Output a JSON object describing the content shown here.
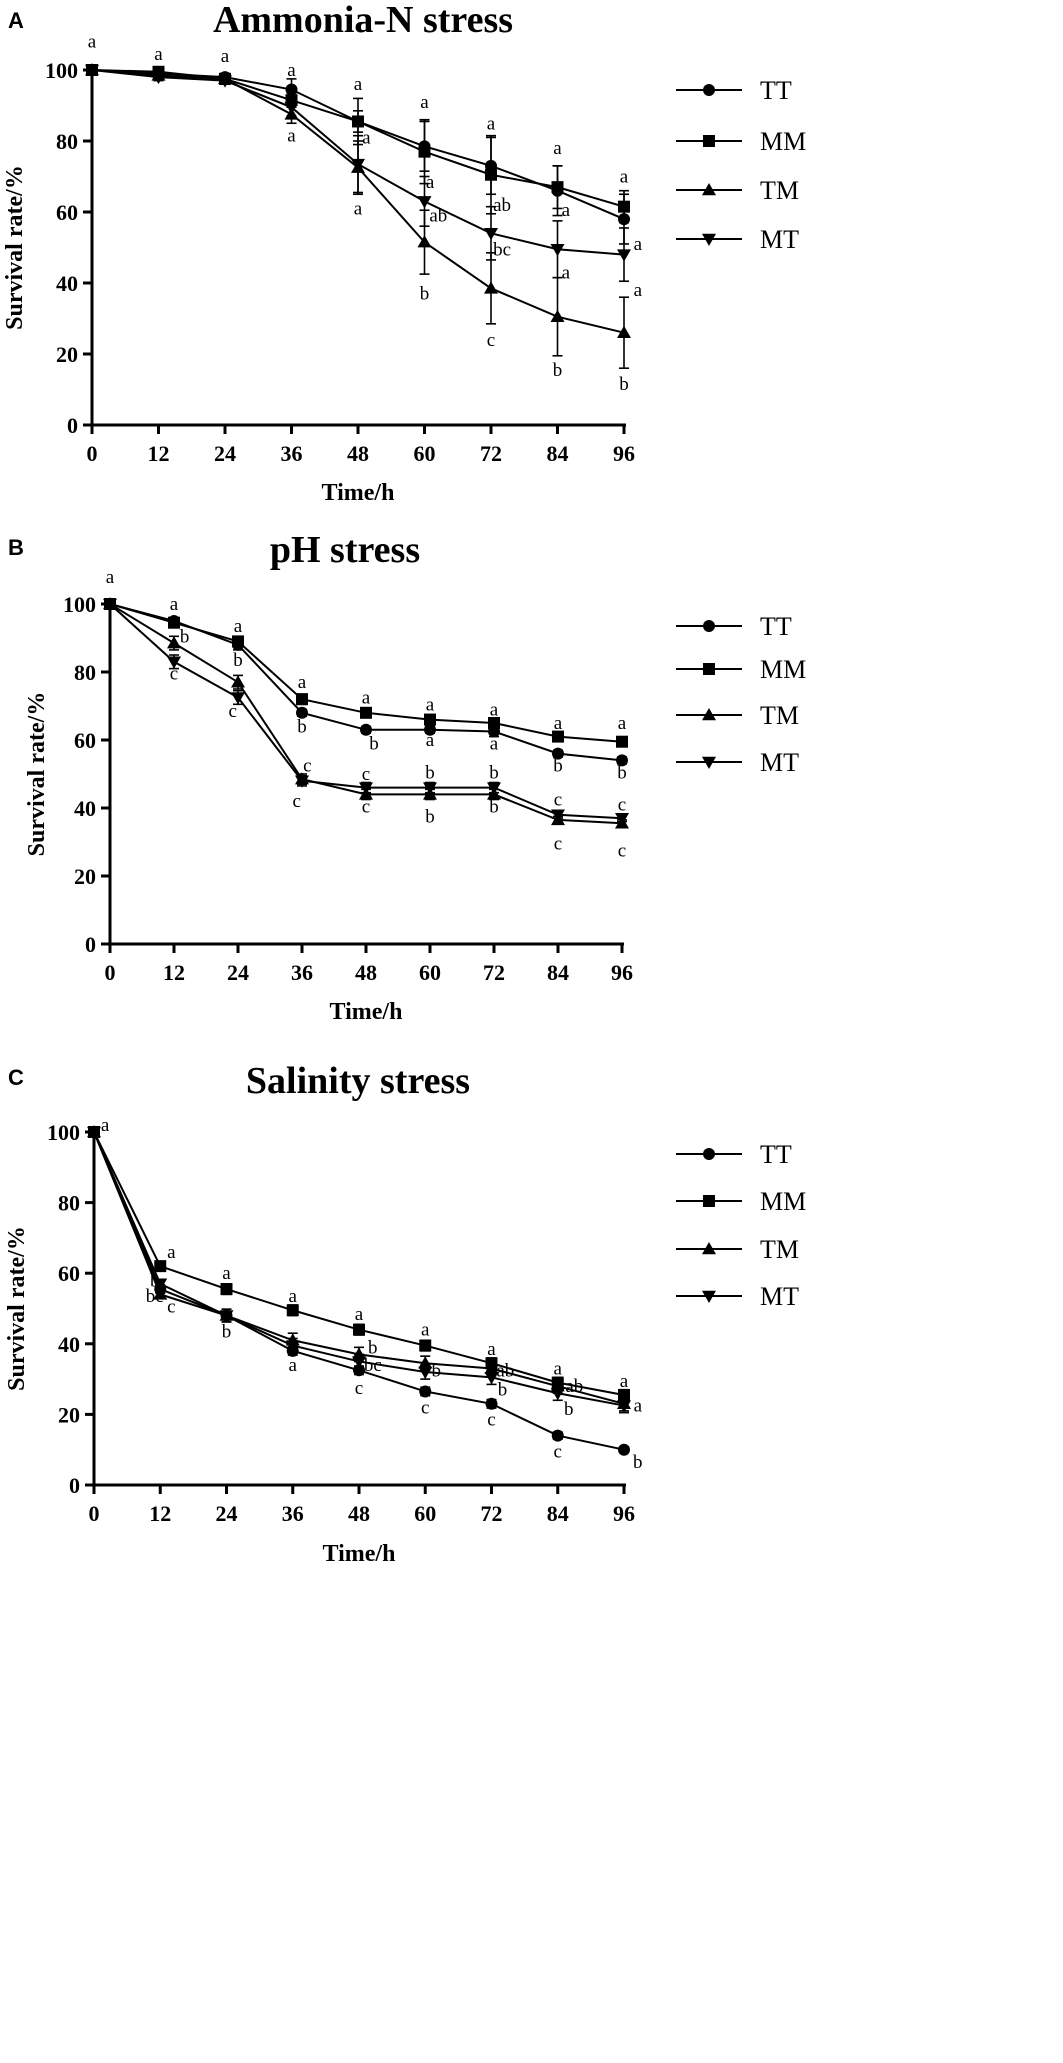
{
  "chart_data": [
    {
      "panel": "A",
      "type": "line",
      "title": "Ammonia-N stress",
      "xlabel": "Time/h",
      "ylabel": "Survival rate/%",
      "x": [
        0,
        12,
        24,
        36,
        48,
        60,
        72,
        84,
        96
      ],
      "x_ticks": [
        "0",
        "12",
        "24",
        "36",
        "48",
        "60",
        "72",
        "84",
        "96"
      ],
      "ylim": [
        0,
        100
      ],
      "y_ticks": [
        "0",
        "20",
        "40",
        "60",
        "80",
        "100"
      ],
      "legend": [
        "TT",
        "MM",
        "TM",
        "MT"
      ],
      "series": [
        {
          "name": "TT",
          "marker": "circle",
          "values": [
            100,
            99,
            98,
            94.5,
            85.5,
            78.5,
            73,
            66,
            58
          ],
          "errors": [
            0,
            1,
            1,
            3,
            3,
            7,
            8,
            7,
            7
          ]
        },
        {
          "name": "MM",
          "marker": "square",
          "values": [
            100,
            99.5,
            97.5,
            91.5,
            85.5,
            77,
            70.5,
            67,
            61.5
          ],
          "errors": [
            0,
            1,
            1,
            2,
            6.5,
            9,
            11,
            6,
            4.5
          ]
        },
        {
          "name": "TM",
          "marker": "triangle-up",
          "values": [
            100,
            98.5,
            97.5,
            87.5,
            72.5,
            51.5,
            38.5,
            30.5,
            26
          ],
          "errors": [
            0,
            1,
            1.5,
            2.5,
            7.5,
            9,
            10,
            11,
            10
          ]
        },
        {
          "name": "MT",
          "marker": "triangle-down",
          "values": [
            100,
            98,
            97,
            89.5,
            73.5,
            63,
            54,
            49.5,
            48
          ],
          "errors": [
            0,
            1,
            1,
            2.5,
            8,
            7,
            7.5,
            8,
            7.5
          ]
        }
      ],
      "annotations": [
        {
          "x": 0,
          "y": 108,
          "text": "a"
        },
        {
          "x": 12,
          "y": 104.5,
          "text": "a"
        },
        {
          "x": 24,
          "y": 104,
          "text": "a"
        },
        {
          "x": 36,
          "y": 100,
          "text": "a"
        },
        {
          "x": 36,
          "y": 81.5,
          "text": "a"
        },
        {
          "x": 48,
          "y": 96,
          "text": "a"
        },
        {
          "x": 49.5,
          "y": 81,
          "text": "a"
        },
        {
          "x": 48,
          "y": 61,
          "text": "a"
        },
        {
          "x": 60,
          "y": 91,
          "text": "a"
        },
        {
          "x": 61,
          "y": 68.5,
          "text": "a"
        },
        {
          "x": 62.5,
          "y": 59,
          "text": "ab"
        },
        {
          "x": 60,
          "y": 37,
          "text": "b"
        },
        {
          "x": 72,
          "y": 85,
          "text": "a"
        },
        {
          "x": 74,
          "y": 62,
          "text": "ab"
        },
        {
          "x": 74,
          "y": 49.5,
          "text": "bc"
        },
        {
          "x": 72,
          "y": 24,
          "text": "c"
        },
        {
          "x": 84,
          "y": 78,
          "text": "a"
        },
        {
          "x": 85.5,
          "y": 60.5,
          "text": "a"
        },
        {
          "x": 85.5,
          "y": 43,
          "text": "a"
        },
        {
          "x": 84,
          "y": 15.5,
          "text": "b"
        },
        {
          "x": 96,
          "y": 70,
          "text": "a"
        },
        {
          "x": 98.5,
          "y": 51,
          "text": "a"
        },
        {
          "x": 98.5,
          "y": 38,
          "text": "a"
        },
        {
          "x": 96,
          "y": 11.5,
          "text": "b"
        }
      ]
    },
    {
      "panel": "B",
      "type": "line",
      "title": "pH stress",
      "xlabel": "Time/h",
      "ylabel": "Survival rate/%",
      "x": [
        0,
        12,
        24,
        36,
        48,
        60,
        72,
        84,
        96
      ],
      "x_ticks": [
        "0",
        "12",
        "24",
        "36",
        "48",
        "60",
        "72",
        "84",
        "96"
      ],
      "ylim": [
        0,
        100
      ],
      "y_ticks": [
        "0",
        "20",
        "40",
        "60",
        "80",
        "100"
      ],
      "legend": [
        "TT",
        "MM",
        "TM",
        "MT"
      ],
      "series": [
        {
          "name": "TT",
          "marker": "circle",
          "values": [
            100,
            95,
            88,
            68,
            63,
            63,
            62.5,
            56,
            54
          ],
          "errors": [
            0,
            1,
            1.5,
            1,
            1,
            1,
            1.5,
            1,
            1
          ]
        },
        {
          "name": "MM",
          "marker": "square",
          "values": [
            100,
            94.5,
            89,
            72,
            68,
            66,
            65,
            61,
            59.5
          ],
          "errors": [
            0,
            1,
            1.5,
            1.5,
            1.2,
            1.5,
            1.2,
            1.2,
            1.2
          ]
        },
        {
          "name": "TM",
          "marker": "triangle-up",
          "values": [
            100,
            88.5,
            77,
            48.5,
            44,
            44,
            44,
            36.5,
            35.5
          ],
          "errors": [
            0,
            2,
            2,
            1.5,
            1.5,
            1.5,
            1.5,
            1,
            1
          ]
        },
        {
          "name": "MT",
          "marker": "triangle-down",
          "values": [
            100,
            83,
            72.5,
            48,
            46,
            46,
            46,
            38,
            37
          ],
          "errors": [
            0,
            2,
            2,
            1.5,
            1.5,
            1.5,
            1.5,
            1,
            1
          ]
        }
      ],
      "annotations": [
        {
          "x": 0,
          "y": 108,
          "text": "a"
        },
        {
          "x": 12,
          "y": 100,
          "text": "a"
        },
        {
          "x": 14,
          "y": 90.5,
          "text": "b"
        },
        {
          "x": 12,
          "y": 79.5,
          "text": "c"
        },
        {
          "x": 24,
          "y": 93.5,
          "text": "a"
        },
        {
          "x": 24,
          "y": 83.5,
          "text": "b"
        },
        {
          "x": 23,
          "y": 68.5,
          "text": "c"
        },
        {
          "x": 36,
          "y": 77,
          "text": "a"
        },
        {
          "x": 36,
          "y": 64,
          "text": "b"
        },
        {
          "x": 37,
          "y": 52.5,
          "text": "c"
        },
        {
          "x": 35,
          "y": 42,
          "text": "c"
        },
        {
          "x": 48,
          "y": 72.5,
          "text": "a"
        },
        {
          "x": 49.5,
          "y": 59,
          "text": "b"
        },
        {
          "x": 48,
          "y": 50,
          "text": "c"
        },
        {
          "x": 48,
          "y": 40.5,
          "text": "c"
        },
        {
          "x": 60,
          "y": 70.5,
          "text": "a"
        },
        {
          "x": 60,
          "y": 60,
          "text": "a"
        },
        {
          "x": 60,
          "y": 50.5,
          "text": "b"
        },
        {
          "x": 60,
          "y": 37.5,
          "text": "b"
        },
        {
          "x": 72,
          "y": 69,
          "text": "a"
        },
        {
          "x": 72,
          "y": 59,
          "text": "a"
        },
        {
          "x": 72,
          "y": 50.5,
          "text": "b"
        },
        {
          "x": 72,
          "y": 40.5,
          "text": "b"
        },
        {
          "x": 84,
          "y": 65,
          "text": "a"
        },
        {
          "x": 84,
          "y": 52.5,
          "text": "b"
        },
        {
          "x": 84,
          "y": 42.5,
          "text": "c"
        },
        {
          "x": 84,
          "y": 29.5,
          "text": "c"
        },
        {
          "x": 96,
          "y": 65,
          "text": "a"
        },
        {
          "x": 96,
          "y": 50.5,
          "text": "b"
        },
        {
          "x": 96,
          "y": 41,
          "text": "c"
        },
        {
          "x": 96,
          "y": 27.5,
          "text": "c"
        }
      ]
    },
    {
      "panel": "C",
      "type": "line",
      "title": "Salinity stress",
      "xlabel": "Time/h",
      "ylabel": "Survival rate/%",
      "x": [
        0,
        12,
        24,
        36,
        48,
        60,
        72,
        84,
        96
      ],
      "x_ticks": [
        "0",
        "12",
        "24",
        "36",
        "48",
        "60",
        "72",
        "84",
        "96"
      ],
      "ylim": [
        0,
        100
      ],
      "y_ticks": [
        "0",
        "20",
        "40",
        "60",
        "80",
        "100"
      ],
      "legend": [
        "TT",
        "MM",
        "TM",
        "MT"
      ],
      "series": [
        {
          "name": "TT",
          "marker": "circle",
          "values": [
            100,
            55.5,
            48,
            38,
            32.5,
            26.5,
            23,
            14,
            10
          ],
          "errors": [
            0,
            1.2,
            1.2,
            1.2,
            1.2,
            1.2,
            1.2,
            1,
            0.8
          ]
        },
        {
          "name": "MM",
          "marker": "square",
          "values": [
            100,
            62,
            55.5,
            49.5,
            44,
            39.5,
            34.5,
            29,
            25.5
          ],
          "errors": [
            0,
            1.2,
            1.5,
            1.5,
            1.5,
            1.5,
            1.5,
            1.5,
            1.5
          ]
        },
        {
          "name": "TM",
          "marker": "triangle-up",
          "values": [
            100,
            54,
            48,
            41,
            37,
            34.5,
            33,
            28,
            23
          ],
          "errors": [
            0,
            1.2,
            1.8,
            2,
            2,
            2,
            2,
            2,
            2
          ]
        },
        {
          "name": "MT",
          "marker": "triangle-down",
          "values": [
            100,
            57,
            48,
            39.5,
            35,
            32,
            30.5,
            26,
            22.5
          ],
          "errors": [
            0,
            1.2,
            1.8,
            2,
            2,
            2,
            2,
            2,
            2
          ]
        }
      ],
      "annotations": [
        {
          "x": 2,
          "y": 102,
          "text": "a"
        },
        {
          "x": 14,
          "y": 66,
          "text": "a"
        },
        {
          "x": 11,
          "y": 58,
          "text": "b"
        },
        {
          "x": 11,
          "y": 53.5,
          "text": "bc"
        },
        {
          "x": 14,
          "y": 50.5,
          "text": "c"
        },
        {
          "x": 24,
          "y": 60,
          "text": "a"
        },
        {
          "x": 24,
          "y": 43.5,
          "text": "b"
        },
        {
          "x": 36,
          "y": 53.5,
          "text": "a"
        },
        {
          "x": 36,
          "y": 34,
          "text": "a"
        },
        {
          "x": 48,
          "y": 48.5,
          "text": "a"
        },
        {
          "x": 50.5,
          "y": 39,
          "text": "b"
        },
        {
          "x": 50.5,
          "y": 34,
          "text": "bc"
        },
        {
          "x": 48,
          "y": 27.5,
          "text": "c"
        },
        {
          "x": 60,
          "y": 44,
          "text": "a"
        },
        {
          "x": 62,
          "y": 32.5,
          "text": "b"
        },
        {
          "x": 60,
          "y": 22,
          "text": "c"
        },
        {
          "x": 72,
          "y": 38.5,
          "text": "a"
        },
        {
          "x": 74.5,
          "y": 32.5,
          "text": "ab"
        },
        {
          "x": 74,
          "y": 27,
          "text": "b"
        },
        {
          "x": 72,
          "y": 18.5,
          "text": "c"
        },
        {
          "x": 84,
          "y": 33,
          "text": "a"
        },
        {
          "x": 87,
          "y": 28,
          "text": "ab"
        },
        {
          "x": 86,
          "y": 21.5,
          "text": "b"
        },
        {
          "x": 84,
          "y": 9.5,
          "text": "c"
        },
        {
          "x": 96,
          "y": 29.5,
          "text": "a"
        },
        {
          "x": 98.5,
          "y": 22.5,
          "text": "a"
        },
        {
          "x": 98.5,
          "y": 6.5,
          "text": "b"
        }
      ]
    }
  ]
}
